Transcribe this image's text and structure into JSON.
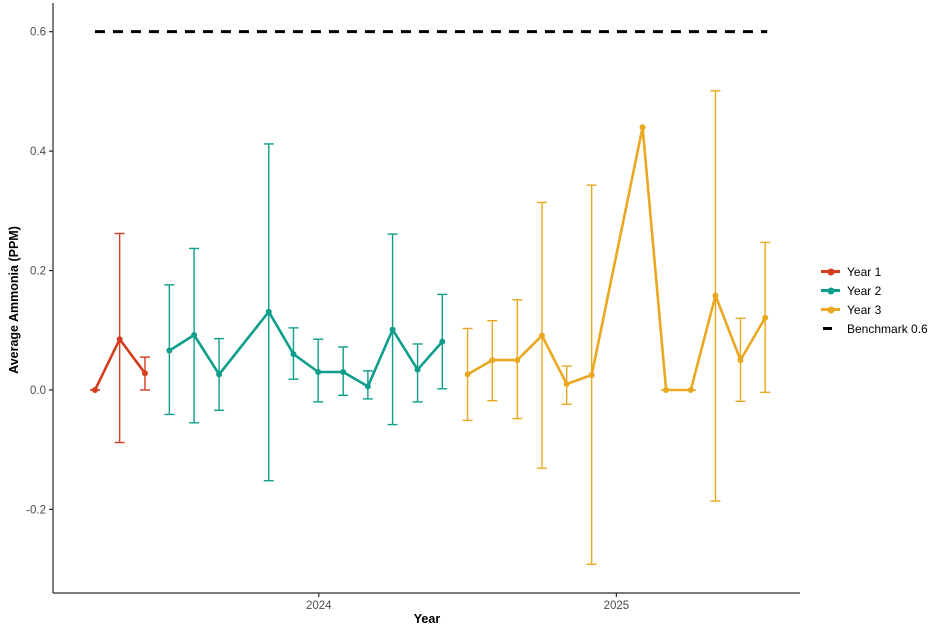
{
  "figure": {
    "background": "#FFFFFF",
    "axis_color": "#2A2A2A",
    "tick_label_color": "#4D4D4D"
  },
  "chart_data": {
    "type": "line",
    "title": "",
    "xlabel": "Year",
    "ylabel": "Average Ammonia (PPM)",
    "grid": false,
    "legend_position": "right",
    "xlim": [
      2023.107,
      2025.617
    ],
    "ylim": [
      -0.34,
      0.648
    ],
    "x_ticks": [
      {
        "value": 2024,
        "label": "2024"
      },
      {
        "value": 2025,
        "label": "2025"
      }
    ],
    "y_ticks": [
      {
        "value": -0.2,
        "label": "-0.2"
      },
      {
        "value": 0.0,
        "label": "0.0"
      },
      {
        "value": 0.2,
        "label": "0.2"
      },
      {
        "value": 0.4,
        "label": "0.4"
      },
      {
        "value": 0.6,
        "label": "0.6"
      }
    ],
    "benchmark": {
      "label": "Benchmark 0.6",
      "value": 0.6,
      "color": "#000000",
      "dash": true,
      "x_start": 2023.248,
      "x_end": 2025.507
    },
    "series": [
      {
        "name": "Year 1",
        "color": "#D43D1E",
        "points": [
          {
            "x": 2023.248,
            "y": 0.0,
            "lo": 0.0,
            "hi": 0.0
          },
          {
            "x": 2023.331,
            "y": 0.085,
            "lo": -0.088,
            "hi": 0.262
          },
          {
            "x": 2023.416,
            "y": 0.028,
            "lo": 0.0,
            "hi": 0.055
          }
        ]
      },
      {
        "name": "Year 2",
        "color": "#0F9E8C",
        "points": [
          {
            "x": 2023.498,
            "y": 0.066,
            "lo": -0.041,
            "hi": 0.176
          },
          {
            "x": 2023.581,
            "y": 0.092,
            "lo": -0.055,
            "hi": 0.237
          },
          {
            "x": 2023.665,
            "y": 0.026,
            "lo": -0.034,
            "hi": 0.086
          },
          {
            "x": 2023.832,
            "y": 0.131,
            "lo": -0.152,
            "hi": 0.412
          },
          {
            "x": 2023.915,
            "y": 0.06,
            "lo": 0.018,
            "hi": 0.104
          },
          {
            "x": 2023.998,
            "y": 0.03,
            "lo": -0.02,
            "hi": 0.085
          },
          {
            "x": 2024.082,
            "y": 0.03,
            "lo": -0.009,
            "hi": 0.072
          },
          {
            "x": 2024.165,
            "y": 0.006,
            "lo": -0.015,
            "hi": 0.032
          },
          {
            "x": 2024.248,
            "y": 0.101,
            "lo": -0.058,
            "hi": 0.261
          },
          {
            "x": 2024.332,
            "y": 0.034,
            "lo": -0.02,
            "hi": 0.077
          },
          {
            "x": 2024.415,
            "y": 0.081,
            "lo": 0.002,
            "hi": 0.16
          }
        ]
      },
      {
        "name": "Year 3",
        "color": "#E9A820",
        "points": [
          {
            "x": 2024.5,
            "y": 0.026,
            "lo": -0.051,
            "hi": 0.103
          },
          {
            "x": 2024.583,
            "y": 0.05,
            "lo": -0.018,
            "hi": 0.116
          },
          {
            "x": 2024.667,
            "y": 0.05,
            "lo": -0.048,
            "hi": 0.151
          },
          {
            "x": 2024.75,
            "y": 0.091,
            "lo": -0.131,
            "hi": 0.314
          },
          {
            "x": 2024.833,
            "y": 0.01,
            "lo": -0.024,
            "hi": 0.04
          },
          {
            "x": 2024.917,
            "y": 0.025,
            "lo": -0.292,
            "hi": 0.343
          },
          {
            "x": 2025.088,
            "y": 0.44,
            "lo": null,
            "hi": null
          },
          {
            "x": 2025.167,
            "y": 0.0,
            "lo": 0.0,
            "hi": 0.0
          },
          {
            "x": 2025.25,
            "y": 0.0,
            "lo": 0.0,
            "hi": 0.0
          },
          {
            "x": 2025.333,
            "y": 0.158,
            "lo": -0.186,
            "hi": 0.501
          },
          {
            "x": 2025.417,
            "y": 0.05,
            "lo": -0.019,
            "hi": 0.12
          },
          {
            "x": 2025.5,
            "y": 0.121,
            "lo": -0.004,
            "hi": 0.247
          }
        ]
      }
    ]
  },
  "legend": {
    "entries": [
      {
        "label": "Year 1",
        "type": "point-line",
        "color": "#D43D1E"
      },
      {
        "label": "Year 2",
        "type": "point-line",
        "color": "#0F9E8C"
      },
      {
        "label": "Year 3",
        "type": "point-line",
        "color": "#E9A820"
      },
      {
        "label": "Benchmark 0.6",
        "type": "dash",
        "color": "#000000"
      }
    ]
  }
}
